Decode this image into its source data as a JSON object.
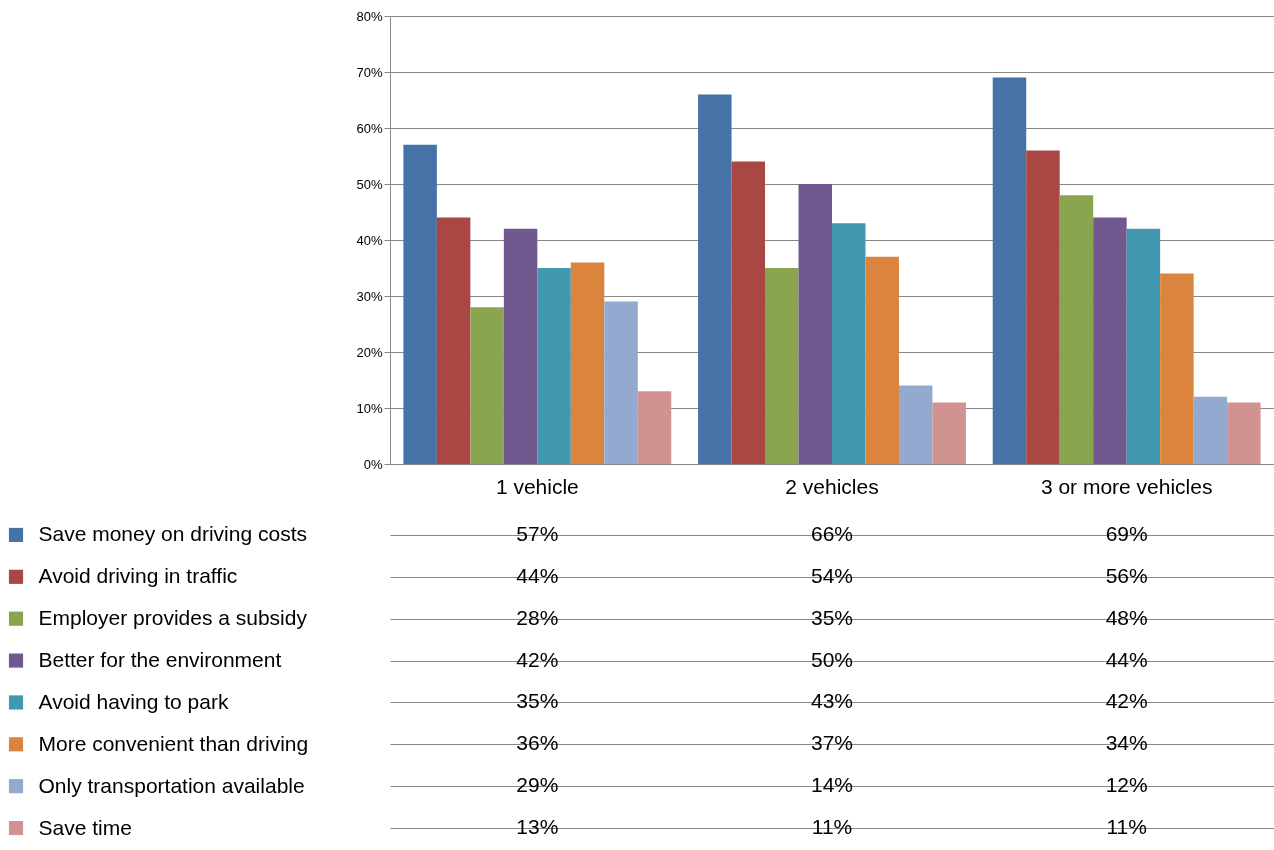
{
  "chart_data": {
    "type": "bar",
    "categories": [
      "1 vehicle",
      "2 vehicles",
      "3 or more vehicles"
    ],
    "ylim": [
      0,
      80
    ],
    "yticks": [
      {
        "value": 0,
        "label": "0%"
      },
      {
        "value": 10,
        "label": "10%"
      },
      {
        "value": 20,
        "label": "20%"
      },
      {
        "value": 30,
        "label": "30%"
      },
      {
        "value": 40,
        "label": "40%"
      },
      {
        "value": 50,
        "label": "50%"
      },
      {
        "value": 60,
        "label": "60%"
      },
      {
        "value": 70,
        "label": "70%"
      },
      {
        "value": 80,
        "label": "80%"
      }
    ],
    "grid": "y",
    "legend": "bottom",
    "series": [
      {
        "name": "Save money on driving costs",
        "color": "#4572a7",
        "values": [
          57,
          66,
          69
        ],
        "value_labels": [
          "57%",
          "66%",
          "69%"
        ]
      },
      {
        "name": "Avoid driving in traffic",
        "color": "#aa4643",
        "values": [
          44,
          54,
          56
        ],
        "value_labels": [
          "44%",
          "54%",
          "56%"
        ]
      },
      {
        "name": "Employer provides a subsidy",
        "color": "#89a54e",
        "values": [
          28,
          35,
          48
        ],
        "value_labels": [
          "28%",
          "35%",
          "48%"
        ]
      },
      {
        "name": "Better for the environment",
        "color": "#71588f",
        "values": [
          42,
          50,
          44
        ],
        "value_labels": [
          "42%",
          "50%",
          "44%"
        ]
      },
      {
        "name": "Avoid having to park",
        "color": "#4198af",
        "values": [
          35,
          43,
          42
        ],
        "value_labels": [
          "35%",
          "43%",
          "42%"
        ]
      },
      {
        "name": "More convenient than driving",
        "color": "#db843d",
        "values": [
          36,
          37,
          34
        ],
        "value_labels": [
          "36%",
          "37%",
          "34%"
        ]
      },
      {
        "name": "Only transportation available",
        "color": "#93a9cf",
        "values": [
          29,
          14,
          12
        ],
        "value_labels": [
          "29%",
          "14%",
          "12%"
        ]
      },
      {
        "name": "Save time",
        "color": "#d19392",
        "values": [
          13,
          11,
          11
        ],
        "value_labels": [
          "13%",
          "11%",
          "11%"
        ]
      }
    ]
  }
}
